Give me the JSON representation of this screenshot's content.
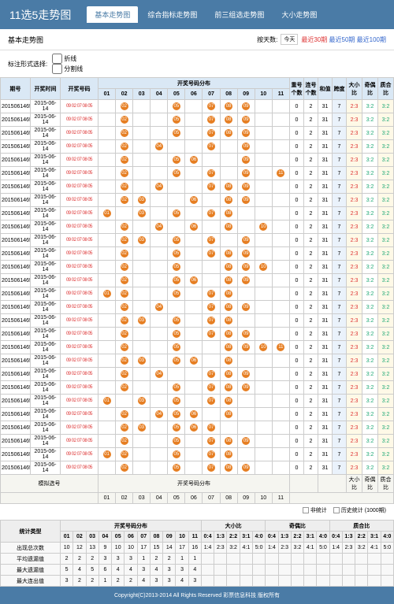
{
  "header": {
    "title": "11选5走势图",
    "tabs": [
      "基本走势图",
      "综合指标走势图",
      "前三组选走势图",
      "大小走势图"
    ],
    "active_tab": 0
  },
  "sub_header": {
    "title": "基本走势图",
    "period_label": "按天数:",
    "dropdown": "今天",
    "periods": [
      {
        "label": "最近30期",
        "color": "red"
      },
      {
        "label": "最近50期",
        "color": "blue"
      },
      {
        "label": "最近100期",
        "color": "blue"
      }
    ]
  },
  "filter": {
    "label": "标注形式选择:",
    "opts": [
      "折线",
      "分割线"
    ]
  },
  "columns": {
    "issue": "期号",
    "date": "开奖时间",
    "nums": "开奖号码",
    "distribution": "开奖号码分布",
    "repeat": "重号个数",
    "consec": "连号个数",
    "sum": "和值",
    "span": "跨度",
    "bigsmall": "大小比",
    "oddeven": "奇偶比",
    "prime": "质合比"
  },
  "ball_numbers": [
    "01",
    "02",
    "03",
    "04",
    "05",
    "06",
    "07",
    "08",
    "09",
    "10",
    "11"
  ],
  "rows": [
    {
      "issue": "2015061465",
      "date": "2015-06-14",
      "nums": "09 02 07 08 05",
      "balls": [
        0,
        2,
        0,
        0,
        5,
        0,
        7,
        8,
        9,
        0,
        0
      ],
      "repeat": 0,
      "consec": 2,
      "sum": 31,
      "span": 7,
      "bs": "2:3",
      "oe": "3:2",
      "pc": "3:2"
    },
    {
      "issue": "2015061465",
      "date": "2015-06-14",
      "nums": "09 02 07 08 05",
      "balls": [
        0,
        2,
        0,
        0,
        5,
        0,
        7,
        8,
        9,
        0,
        0
      ],
      "repeat": 0,
      "consec": 2,
      "sum": 31,
      "span": 7,
      "bs": "2:3",
      "oe": "3:2",
      "pc": "3:2"
    },
    {
      "issue": "2015061465",
      "date": "2015-06-14",
      "nums": "09 02 07 08 05",
      "balls": [
        0,
        2,
        0,
        0,
        5,
        0,
        7,
        8,
        9,
        0,
        0
      ],
      "repeat": 0,
      "consec": 2,
      "sum": 31,
      "span": 7,
      "bs": "2:3",
      "oe": "3:2",
      "pc": "3:2"
    },
    {
      "issue": "2015061465",
      "date": "2015-06-14",
      "nums": "09 02 07 08 05",
      "balls": [
        0,
        2,
        0,
        4,
        0,
        0,
        7,
        0,
        9,
        0,
        0
      ],
      "repeat": 0,
      "consec": 2,
      "sum": 31,
      "span": 7,
      "bs": "2:3",
      "oe": "3:2",
      "pc": "3:2"
    },
    {
      "issue": "2015061465",
      "date": "2015-06-14",
      "nums": "09 02 07 08 05",
      "balls": [
        0,
        2,
        0,
        0,
        5,
        6,
        0,
        0,
        9,
        0,
        0
      ],
      "repeat": 0,
      "consec": 2,
      "sum": 31,
      "span": 7,
      "bs": "2:3",
      "oe": "3:2",
      "pc": "3:2"
    },
    {
      "issue": "2015061465",
      "date": "2015-06-14",
      "nums": "09 02 07 08 05",
      "balls": [
        0,
        2,
        0,
        0,
        5,
        0,
        7,
        0,
        9,
        0,
        11
      ],
      "repeat": 0,
      "consec": 2,
      "sum": 31,
      "span": 7,
      "bs": "2:3",
      "oe": "3:2",
      "pc": "3:2"
    },
    {
      "issue": "2015061465",
      "date": "2015-06-14",
      "nums": "09 02 07 08 05",
      "balls": [
        0,
        2,
        0,
        4,
        0,
        0,
        7,
        8,
        9,
        0,
        0
      ],
      "repeat": 0,
      "consec": 2,
      "sum": 31,
      "span": 7,
      "bs": "2:3",
      "oe": "3:2",
      "pc": "3:2"
    },
    {
      "issue": "2015061465",
      "date": "2015-06-14",
      "nums": "09 02 07 08 05",
      "balls": [
        0,
        2,
        3,
        0,
        0,
        6,
        0,
        8,
        9,
        0,
        0
      ],
      "repeat": 0,
      "consec": 2,
      "sum": 31,
      "span": 7,
      "bs": "2:3",
      "oe": "3:2",
      "pc": "3:2"
    },
    {
      "issue": "2015061465",
      "date": "2015-06-14",
      "nums": "09 02 07 08 05",
      "balls": [
        1,
        0,
        3,
        0,
        5,
        0,
        7,
        8,
        0,
        0,
        0
      ],
      "repeat": 0,
      "consec": 2,
      "sum": 31,
      "span": 7,
      "bs": "2:3",
      "oe": "3:2",
      "pc": "3:2"
    },
    {
      "issue": "2015061465",
      "date": "2015-06-14",
      "nums": "09 02 07 08 05",
      "balls": [
        0,
        2,
        0,
        4,
        0,
        6,
        0,
        8,
        0,
        10,
        0
      ],
      "repeat": 0,
      "consec": 2,
      "sum": 31,
      "span": 7,
      "bs": "2:3",
      "oe": "3:2",
      "pc": "3:2"
    },
    {
      "issue": "2015061465",
      "date": "2015-06-14",
      "nums": "09 02 07 08 05",
      "balls": [
        0,
        2,
        3,
        0,
        5,
        0,
        7,
        0,
        9,
        0,
        0
      ],
      "repeat": 0,
      "consec": 2,
      "sum": 31,
      "span": 7,
      "bs": "2:3",
      "oe": "3:2",
      "pc": "3:2"
    },
    {
      "issue": "2015061465",
      "date": "2015-06-14",
      "nums": "09 02 07 08 05",
      "balls": [
        0,
        2,
        0,
        0,
        5,
        0,
        7,
        8,
        9,
        0,
        0
      ],
      "repeat": 0,
      "consec": 2,
      "sum": 31,
      "span": 7,
      "bs": "2:3",
      "oe": "3:2",
      "pc": "3:2"
    },
    {
      "issue": "2015061465",
      "date": "2015-06-14",
      "nums": "09 02 07 08 05",
      "balls": [
        0,
        2,
        0,
        0,
        5,
        0,
        0,
        8,
        9,
        10,
        0
      ],
      "repeat": 0,
      "consec": 2,
      "sum": 31,
      "span": 7,
      "bs": "2:3",
      "oe": "3:2",
      "pc": "3:2"
    },
    {
      "issue": "2015061465",
      "date": "2015-06-14",
      "nums": "09 02 07 08 05",
      "balls": [
        0,
        2,
        0,
        0,
        5,
        6,
        0,
        8,
        9,
        0,
        0
      ],
      "repeat": 0,
      "consec": 2,
      "sum": 31,
      "span": 7,
      "bs": "2:3",
      "oe": "3:2",
      "pc": "3:2"
    },
    {
      "issue": "2015061465",
      "date": "2015-06-14",
      "nums": "09 02 07 08 05",
      "balls": [
        1,
        2,
        0,
        0,
        5,
        0,
        7,
        8,
        0,
        0,
        0
      ],
      "repeat": 0,
      "consec": 2,
      "sum": 31,
      "span": 7,
      "bs": "2:3",
      "oe": "3:2",
      "pc": "3:2"
    },
    {
      "issue": "2015061465",
      "date": "2015-06-14",
      "nums": "09 02 07 08 05",
      "balls": [
        0,
        2,
        0,
        4,
        0,
        0,
        7,
        8,
        9,
        0,
        0
      ],
      "repeat": 0,
      "consec": 2,
      "sum": 31,
      "span": 7,
      "bs": "2:3",
      "oe": "3:2",
      "pc": "3:2"
    },
    {
      "issue": "2015061465",
      "date": "2015-06-14",
      "nums": "09 02 07 08 05",
      "balls": [
        0,
        2,
        3,
        0,
        5,
        0,
        7,
        8,
        0,
        0,
        0
      ],
      "repeat": 0,
      "consec": 2,
      "sum": 31,
      "span": 7,
      "bs": "2:3",
      "oe": "3:2",
      "pc": "3:2"
    },
    {
      "issue": "2015061465",
      "date": "2015-06-14",
      "nums": "09 02 07 08 05",
      "balls": [
        0,
        2,
        0,
        0,
        5,
        0,
        7,
        8,
        9,
        0,
        0
      ],
      "repeat": 0,
      "consec": 2,
      "sum": 31,
      "span": 7,
      "bs": "2:3",
      "oe": "3:2",
      "pc": "3:2"
    },
    {
      "issue": "2015061465",
      "date": "2015-06-14",
      "nums": "09 02 07 08 05",
      "balls": [
        0,
        2,
        0,
        0,
        5,
        0,
        0,
        8,
        9,
        10,
        11
      ],
      "repeat": 0,
      "consec": 2,
      "sum": 31,
      "span": 7,
      "bs": "2:3",
      "oe": "3:2",
      "pc": "3:2"
    },
    {
      "issue": "2015061465",
      "date": "2015-06-14",
      "nums": "09 02 07 08 05",
      "balls": [
        0,
        2,
        3,
        0,
        5,
        6,
        0,
        8,
        0,
        0,
        0
      ],
      "repeat": 0,
      "consec": 2,
      "sum": 31,
      "span": 7,
      "bs": "2:3",
      "oe": "3:2",
      "pc": "3:2"
    },
    {
      "issue": "2015061465",
      "date": "2015-06-14",
      "nums": "09 02 07 08 05",
      "balls": [
        0,
        2,
        0,
        4,
        0,
        0,
        7,
        8,
        9,
        0,
        0
      ],
      "repeat": 0,
      "consec": 2,
      "sum": 31,
      "span": 7,
      "bs": "2:3",
      "oe": "3:2",
      "pc": "3:2"
    },
    {
      "issue": "2015061465",
      "date": "2015-06-14",
      "nums": "09 02 07 08 05",
      "balls": [
        0,
        2,
        0,
        0,
        5,
        0,
        7,
        8,
        9,
        0,
        0
      ],
      "repeat": 0,
      "consec": 2,
      "sum": 31,
      "span": 7,
      "bs": "2:3",
      "oe": "3:2",
      "pc": "3:2"
    },
    {
      "issue": "2015061465",
      "date": "2015-06-14",
      "nums": "09 02 07 08 05",
      "balls": [
        1,
        0,
        3,
        0,
        5,
        0,
        7,
        8,
        0,
        0,
        0
      ],
      "repeat": 0,
      "consec": 2,
      "sum": 31,
      "span": 7,
      "bs": "2:3",
      "oe": "3:2",
      "pc": "3:2"
    },
    {
      "issue": "2015061465",
      "date": "2015-06-14",
      "nums": "09 02 07 08 05",
      "balls": [
        0,
        2,
        0,
        4,
        5,
        6,
        0,
        8,
        0,
        0,
        0
      ],
      "repeat": 0,
      "consec": 2,
      "sum": 31,
      "span": 7,
      "bs": "2:3",
      "oe": "3:2",
      "pc": "3:2"
    },
    {
      "issue": "2015061465",
      "date": "2015-06-14",
      "nums": "09 02 07 08 05",
      "balls": [
        0,
        2,
        3,
        0,
        5,
        6,
        7,
        0,
        0,
        0,
        0
      ],
      "repeat": 0,
      "consec": 2,
      "sum": 31,
      "span": 7,
      "bs": "2:3",
      "oe": "3:2",
      "pc": "3:2"
    },
    {
      "issue": "2015061465",
      "date": "2015-06-14",
      "nums": "09 02 07 08 05",
      "balls": [
        0,
        2,
        0,
        0,
        5,
        0,
        7,
        8,
        9,
        0,
        0
      ],
      "repeat": 0,
      "consec": 2,
      "sum": 31,
      "span": 7,
      "bs": "2:3",
      "oe": "3:2",
      "pc": "3:2"
    },
    {
      "issue": "2015061465",
      "date": "2015-06-14",
      "nums": "09 02 07 08 05",
      "balls": [
        1,
        2,
        0,
        0,
        5,
        0,
        7,
        8,
        0,
        0,
        0
      ],
      "repeat": 0,
      "consec": 2,
      "sum": 31,
      "span": 7,
      "bs": "2:3",
      "oe": "3:2",
      "pc": "3:2"
    },
    {
      "issue": "2015061465",
      "date": "2015-06-14",
      "nums": "09 02 07 08 05",
      "balls": [
        0,
        2,
        0,
        0,
        5,
        0,
        7,
        8,
        9,
        0,
        0
      ],
      "repeat": 0,
      "consec": 2,
      "sum": 31,
      "span": 7,
      "bs": "2:3",
      "oe": "3:2",
      "pc": "3:2"
    }
  ],
  "sim_row": {
    "label": "模拟选号"
  },
  "legend": {
    "items": [
      "非统计",
      "历史统计 (1000期)"
    ]
  },
  "stats": {
    "header": "统计类型",
    "rows": [
      {
        "label": "出现总次数",
        "vals": [
          10,
          12,
          13,
          9,
          10,
          10,
          17,
          15,
          14,
          17,
          16
        ],
        "bs": [
          "1:4",
          "2:3",
          "3:2",
          "4:1",
          "5:0"
        ],
        "oe": [
          "1:4",
          "2:3",
          "3:2",
          "4:1",
          "5:0"
        ],
        "pc": [
          "1:4",
          "2:3",
          "3:2",
          "4:1",
          "5:0"
        ]
      },
      {
        "label": "平均遗漏值",
        "vals": [
          2,
          2,
          2,
          3,
          3,
          3,
          1,
          2,
          2,
          1,
          1
        ],
        "bs": [
          "",
          "",
          "",
          "",
          ""
        ],
        "oe": [
          "",
          "",
          "",
          "",
          ""
        ],
        "pc": [
          "",
          "",
          "",
          "",
          ""
        ]
      },
      {
        "label": "最大遗漏值",
        "vals": [
          5,
          4,
          5,
          6,
          4,
          4,
          3,
          4,
          3,
          3,
          4
        ],
        "bs": [
          "",
          "",
          "",
          "",
          ""
        ],
        "oe": [
          "",
          "",
          "",
          "",
          ""
        ],
        "pc": [
          "",
          "",
          "",
          "",
          ""
        ]
      },
      {
        "label": "最大连出值",
        "vals": [
          3,
          2,
          2,
          1,
          2,
          2,
          4,
          3,
          3,
          4,
          3
        ],
        "bs": [
          "",
          "",
          "",
          "",
          ""
        ],
        "oe": [
          "",
          "",
          "",
          "",
          ""
        ],
        "pc": [
          "",
          "",
          "",
          "",
          ""
        ]
      }
    ]
  },
  "footer": "Copyright(C)2013-2014 All Rights Reserved 彩票信息科技 版权所有",
  "colors": {
    "header_bg": "#4a7ba6",
    "ball": "#e67e22",
    "red": "#d33",
    "green": "#2a7",
    "yellow_cell": "#fef9e7",
    "blue_cell": "#eaf2fb",
    "hdr_blue": "#dae8f5"
  }
}
